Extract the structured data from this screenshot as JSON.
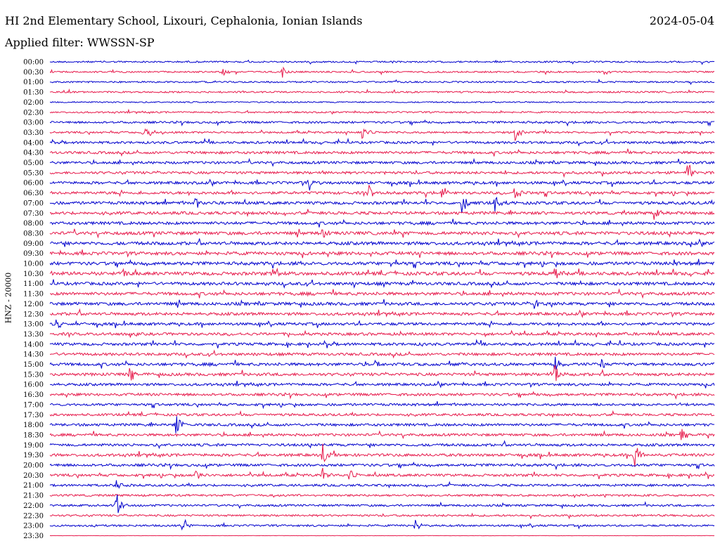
{
  "header": {
    "station": "HI 2nd Elementary School, Lixouri, Cephalonia, Ionian Islands",
    "date": "2024-05-04",
    "filter": "Applied filter: WWSSN-SP",
    "channel_label": "HNZ - 20000"
  },
  "colors": {
    "odd_trace": "#0000cc",
    "even_trace": "#e6194b"
  },
  "chart_data": {
    "type": "line",
    "title": "HI 2nd Elementary School, Lixouri, Cephalonia, Ionian Islands",
    "ylabel": "HNZ - 20000",
    "row_duration_minutes": 30,
    "rows": [
      {
        "label": "00:00",
        "activity": 1.0,
        "events": []
      },
      {
        "label": "00:30",
        "activity": 1.0,
        "events": [
          {
            "t": 0.26,
            "amp": 1.0
          },
          {
            "t": 0.35,
            "amp": 1.2
          }
        ]
      },
      {
        "label": "01:00",
        "activity": 1.0,
        "events": []
      },
      {
        "label": "01:30",
        "activity": 1.0,
        "events": []
      },
      {
        "label": "02:00",
        "activity": 0.8,
        "events": []
      },
      {
        "label": "02:30",
        "activity": 1.0,
        "events": []
      },
      {
        "label": "03:00",
        "activity": 1.3,
        "events": []
      },
      {
        "label": "03:30",
        "activity": 1.2,
        "events": [
          {
            "t": 0.14,
            "amp": 2.0
          },
          {
            "t": 0.47,
            "amp": 2.0
          },
          {
            "t": 0.7,
            "amp": 2.0
          }
        ]
      },
      {
        "label": "04:00",
        "activity": 1.5,
        "events": []
      },
      {
        "label": "04:30",
        "activity": 1.6,
        "events": []
      },
      {
        "label": "05:00",
        "activity": 1.6,
        "events": []
      },
      {
        "label": "05:30",
        "activity": 1.6,
        "events": [
          {
            "t": 0.96,
            "amp": 2.3
          }
        ]
      },
      {
        "label": "06:00",
        "activity": 1.7,
        "events": [
          {
            "t": 0.39,
            "amp": 1.5
          }
        ]
      },
      {
        "label": "06:30",
        "activity": 1.7,
        "events": [
          {
            "t": 0.48,
            "amp": 1.6
          },
          {
            "t": 0.59,
            "amp": 1.6
          },
          {
            "t": 0.7,
            "amp": 2.0
          }
        ]
      },
      {
        "label": "07:00",
        "activity": 1.8,
        "events": [
          {
            "t": 0.22,
            "amp": 1.5
          },
          {
            "t": 0.62,
            "amp": 2.5
          },
          {
            "t": 0.67,
            "amp": 2.2
          }
        ]
      },
      {
        "label": "07:30",
        "activity": 1.8,
        "events": [
          {
            "t": 0.91,
            "amp": 2.4
          }
        ]
      },
      {
        "label": "08:00",
        "activity": 1.8,
        "events": []
      },
      {
        "label": "08:30",
        "activity": 2.0,
        "events": [
          {
            "t": 0.41,
            "amp": 1.3
          }
        ]
      },
      {
        "label": "09:00",
        "activity": 2.0,
        "events": []
      },
      {
        "label": "09:30",
        "activity": 2.0,
        "events": []
      },
      {
        "label": "10:00",
        "activity": 2.0,
        "events": []
      },
      {
        "label": "10:30",
        "activity": 2.1,
        "events": [
          {
            "t": 0.11,
            "amp": 1.3
          },
          {
            "t": 0.34,
            "amp": 1.4
          },
          {
            "t": 0.76,
            "amp": 1.5
          }
        ]
      },
      {
        "label": "11:00",
        "activity": 1.9,
        "events": []
      },
      {
        "label": "11:30",
        "activity": 1.9,
        "events": []
      },
      {
        "label": "12:00",
        "activity": 1.9,
        "events": [
          {
            "t": 0.73,
            "amp": 1.4
          }
        ]
      },
      {
        "label": "12:30",
        "activity": 1.8,
        "events": []
      },
      {
        "label": "13:00",
        "activity": 1.7,
        "events": [
          {
            "t": 0.01,
            "amp": 1.8
          }
        ]
      },
      {
        "label": "13:30",
        "activity": 1.7,
        "events": []
      },
      {
        "label": "14:00",
        "activity": 1.7,
        "events": []
      },
      {
        "label": "14:30",
        "activity": 1.7,
        "events": []
      },
      {
        "label": "15:00",
        "activity": 1.8,
        "events": [
          {
            "t": 0.49,
            "amp": 1.3
          },
          {
            "t": 0.76,
            "amp": 1.6
          },
          {
            "t": 0.83,
            "amp": 1.3
          }
        ]
      },
      {
        "label": "15:30",
        "activity": 1.8,
        "events": [
          {
            "t": 0.12,
            "amp": 1.8
          },
          {
            "t": 0.76,
            "amp": 2.3
          }
        ]
      },
      {
        "label": "16:00",
        "activity": 1.6,
        "events": []
      },
      {
        "label": "16:30",
        "activity": 1.6,
        "events": []
      },
      {
        "label": "17:00",
        "activity": 1.5,
        "events": []
      },
      {
        "label": "17:30",
        "activity": 1.5,
        "events": []
      },
      {
        "label": "18:00",
        "activity": 1.6,
        "events": [
          {
            "t": 0.19,
            "amp": 2.1
          }
        ]
      },
      {
        "label": "18:30",
        "activity": 1.6,
        "events": [
          {
            "t": 0.95,
            "amp": 1.6
          }
        ]
      },
      {
        "label": "19:00",
        "activity": 1.6,
        "events": []
      },
      {
        "label": "19:30",
        "activity": 1.7,
        "events": [
          {
            "t": 0.41,
            "amp": 2.5
          },
          {
            "t": 0.88,
            "amp": 3.2
          }
        ]
      },
      {
        "label": "20:00",
        "activity": 1.6,
        "events": []
      },
      {
        "label": "20:30",
        "activity": 1.6,
        "events": [
          {
            "t": 0.22,
            "amp": 1.4
          },
          {
            "t": 0.41,
            "amp": 1.6
          },
          {
            "t": 0.45,
            "amp": 1.3
          }
        ]
      },
      {
        "label": "21:00",
        "activity": 1.4,
        "events": [
          {
            "t": 0.1,
            "amp": 1.8
          }
        ]
      },
      {
        "label": "21:30",
        "activity": 1.3,
        "events": []
      },
      {
        "label": "22:00",
        "activity": 1.3,
        "events": [
          {
            "t": 0.1,
            "amp": 3.0
          }
        ]
      },
      {
        "label": "22:30",
        "activity": 1.2,
        "events": []
      },
      {
        "label": "23:00",
        "activity": 1.2,
        "events": [
          {
            "t": 0.2,
            "amp": 1.3
          },
          {
            "t": 0.55,
            "amp": 1.2
          }
        ]
      },
      {
        "label": "23:30",
        "activity": 0.2,
        "events": []
      }
    ]
  }
}
